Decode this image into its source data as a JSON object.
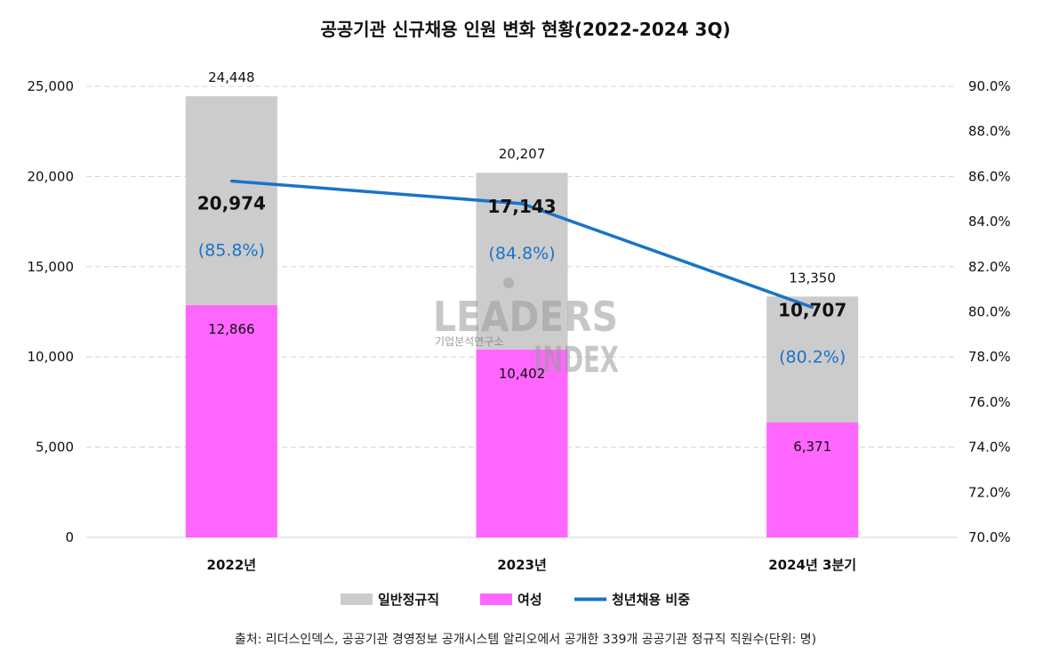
{
  "chart_data": {
    "type": "bar",
    "title": "공공기관 신규채용 인원 변화 현황(2022-2024 3Q)",
    "categories": [
      "2022년",
      "2023년",
      "2024년 3분기"
    ],
    "series": [
      {
        "name": "일반정규직",
        "kind": "bar",
        "values": [
          24448,
          20207,
          13350
        ],
        "labels": [
          "24,448",
          "20,207",
          "13,350"
        ],
        "color": "#cccccc"
      },
      {
        "name": "여성",
        "kind": "bar",
        "values": [
          12866,
          10402,
          6371
        ],
        "labels": [
          "12,866",
          "10,402",
          "6,371"
        ],
        "color": "#ff66ff"
      },
      {
        "name": "청년채용 비중",
        "kind": "line",
        "axis": "right",
        "values": [
          85.8,
          84.8,
          80.2
        ],
        "labels": [
          "(85.8%)",
          "(84.8%)",
          "(80.2%)"
        ],
        "color": "#1874c8"
      }
    ],
    "youth_counts": [
      20974,
      17143,
      10707
    ],
    "youth_labels": [
      "20,974",
      "17,143",
      "10,707"
    ],
    "left_axis": {
      "ylim": [
        0,
        25000
      ],
      "ticks": [
        0,
        5000,
        10000,
        15000,
        20000,
        25000
      ],
      "tick_labels": [
        "0",
        "5,000",
        "10,000",
        "15,000",
        "20,000",
        "25,000"
      ]
    },
    "right_axis": {
      "ylim": [
        70,
        90
      ],
      "ticks": [
        70,
        72,
        74,
        76,
        78,
        80,
        82,
        84,
        86,
        88,
        90
      ],
      "tick_labels": [
        "70.0%",
        "72.0%",
        "74.0%",
        "76.0%",
        "78.0%",
        "80.0%",
        "82.0%",
        "84.0%",
        "86.0%",
        "88.0%",
        "90.0%"
      ]
    },
    "grid": true,
    "legend": {
      "position": "bottom",
      "entries": [
        "일반정규직",
        "여성",
        "청년채용 비중"
      ]
    },
    "source": "출처: 리더스인덱스, 공공기관 경영정보 공개시스템 알리오에서 공개한 339개 공공기관 정규직 직원수(단위: 명)",
    "watermark": {
      "main": "LEADERS",
      "sub": "기업분석연구소",
      "mark": "INDEX"
    }
  }
}
